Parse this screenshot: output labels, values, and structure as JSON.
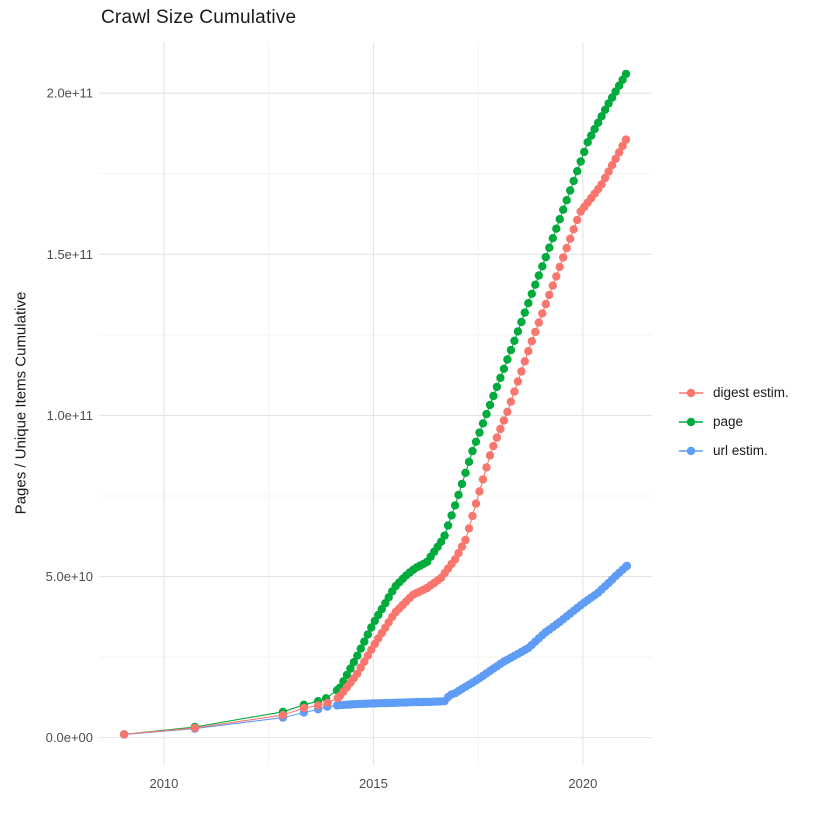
{
  "chart_data": {
    "type": "scatter",
    "title": "Crawl Size Cumulative",
    "xlabel": "",
    "ylabel": "Pages / Unique Items Cumulative",
    "grid": true,
    "legend_position": "right",
    "xlim": [
      2008.45,
      2021.65
    ],
    "ylim_e9": [
      -8.5,
      215.9
    ],
    "x_major_ticks": [
      {
        "value": 2010,
        "label": "2010"
      },
      {
        "value": 2015,
        "label": "2015"
      },
      {
        "value": 2020,
        "label": "2020"
      }
    ],
    "x_minor_ticks": [
      2012.5,
      2017.5
    ],
    "y_major_ticks": [
      {
        "value_e9": 0,
        "label": "0.0e+00"
      },
      {
        "value_e9": 50,
        "label": "5.0e+10"
      },
      {
        "value_e9": 100,
        "label": "1.0e+11"
      },
      {
        "value_e9": 150,
        "label": "1.5e+11"
      },
      {
        "value_e9": 200,
        "label": "2.0e+11"
      }
    ],
    "y_minor_ticks_e9": [
      25,
      75,
      125,
      175
    ],
    "points_cadence_years": 0.0833,
    "series": [
      {
        "name": "digest estim.",
        "color": "#F8766D",
        "z": 2,
        "early_points_year_value_e9": [
          [
            2009.05,
            1.0
          ],
          [
            2010.74,
            3.0
          ],
          [
            2012.84,
            7.0
          ],
          [
            2013.34,
            9.2
          ],
          [
            2013.68,
            10.0
          ],
          [
            2013.91,
            10.8
          ],
          [
            2014.15,
            12.3
          ]
        ],
        "waypoints_year_value_e9": [
          [
            2014.2,
            12.9
          ],
          [
            2014.6,
            19.5
          ],
          [
            2015.0,
            28.4
          ],
          [
            2015.51,
            38.7
          ],
          [
            2015.94,
            44.3
          ],
          [
            2016.28,
            46.4
          ],
          [
            2016.61,
            49.5
          ],
          [
            2016.97,
            55.7
          ],
          [
            2017.21,
            61.6
          ],
          [
            2017.5,
            75.0
          ],
          [
            2017.8,
            88.4
          ],
          [
            2018.19,
            100.8
          ],
          [
            2018.78,
            123.0
          ],
          [
            2019.36,
            143.0
          ],
          [
            2019.93,
            163.0
          ],
          [
            2020.43,
            171.3
          ],
          [
            2021.03,
            185.6
          ]
        ]
      },
      {
        "name": "page",
        "color": "#00AB3D",
        "z": 0,
        "early_points_year_value_e9": [
          [
            2009.05,
            1.0
          ],
          [
            2010.74,
            3.3
          ],
          [
            2012.84,
            8.0
          ],
          [
            2013.34,
            10.2
          ],
          [
            2013.68,
            11.3
          ],
          [
            2013.87,
            12.2
          ],
          [
            2014.13,
            14.7
          ]
        ],
        "waypoints_year_value_e9": [
          [
            2014.2,
            15.5
          ],
          [
            2014.6,
            25.0
          ],
          [
            2015.0,
            35.5
          ],
          [
            2015.51,
            46.7
          ],
          [
            2015.75,
            50.0
          ],
          [
            2016.0,
            52.6
          ],
          [
            2016.28,
            54.5
          ],
          [
            2016.68,
            62.0
          ],
          [
            2017.0,
            74.0
          ],
          [
            2017.35,
            88.4
          ],
          [
            2017.71,
            100.8
          ],
          [
            2018.16,
            116.0
          ],
          [
            2018.76,
            137.0
          ],
          [
            2019.14,
            150.0
          ],
          [
            2019.62,
            167.0
          ],
          [
            2020.12,
            185.0
          ],
          [
            2020.6,
            196.5
          ],
          [
            2021.03,
            206.0
          ]
        ]
      },
      {
        "name": "url estim.",
        "color": "#5F9CF6",
        "z": 1,
        "early_points_year_value_e9": [
          [
            2009.05,
            1.0
          ],
          [
            2010.74,
            2.8
          ],
          [
            2012.84,
            6.2
          ],
          [
            2013.34,
            7.8
          ],
          [
            2013.68,
            8.8
          ],
          [
            2013.9,
            9.6
          ],
          [
            2014.13,
            10.0
          ]
        ],
        "waypoints_year_value_e9": [
          [
            2014.2,
            10.1
          ],
          [
            2014.6,
            10.4
          ],
          [
            2015.0,
            10.6
          ],
          [
            2015.5,
            10.8
          ],
          [
            2016.0,
            11.0
          ],
          [
            2016.4,
            11.1
          ],
          [
            2016.7,
            11.3
          ],
          [
            2016.82,
            13.2
          ],
          [
            2016.95,
            13.8
          ],
          [
            2017.47,
            17.9
          ],
          [
            2018.09,
            23.4
          ],
          [
            2018.7,
            27.8
          ],
          [
            2019.09,
            32.5
          ],
          [
            2019.45,
            35.9
          ],
          [
            2019.86,
            40.2
          ],
          [
            2020.05,
            42.1
          ],
          [
            2020.36,
            44.9
          ],
          [
            2020.64,
            48.3
          ],
          [
            2020.81,
            50.5
          ],
          [
            2021.05,
            53.3
          ]
        ]
      }
    ]
  }
}
